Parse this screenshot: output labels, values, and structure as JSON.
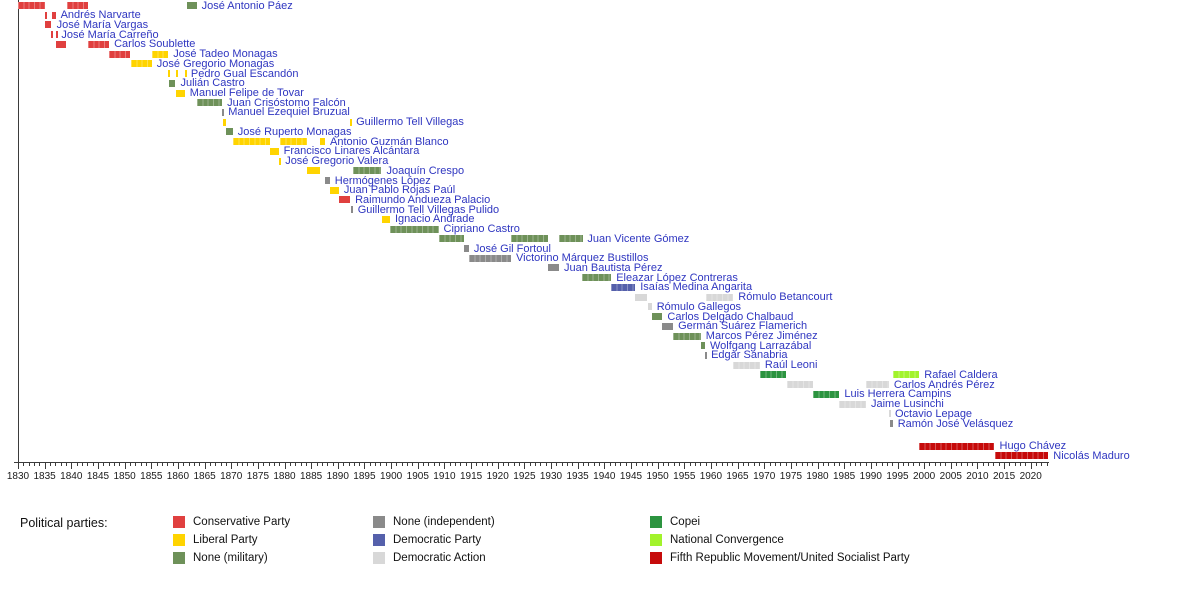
{
  "legend": {
    "heading": "Political parties:",
    "columns": [
      [
        {
          "label": "Conservative Party",
          "party": "conservative"
        },
        {
          "label": "Liberal Party",
          "party": "liberal"
        },
        {
          "label": "None (military)",
          "party": "none_military"
        }
      ],
      [
        {
          "label": "None (independent)",
          "party": "none_independent"
        },
        {
          "label": "Democratic Party",
          "party": "democratic_party"
        },
        {
          "label": "Democratic Action",
          "party": "democratic_action"
        }
      ],
      [
        {
          "label": "Copei",
          "party": "copei"
        },
        {
          "label": "National Convergence",
          "party": "national_convergence"
        },
        {
          "label": "Fifth Republic Movement/United Socialist Party",
          "party": "fifth_republic"
        }
      ]
    ]
  },
  "party_colors": {
    "conservative": "#e0403f",
    "liberal": "#ffd400",
    "none_military": "#6e9159",
    "none_independent": "#8a8a8a",
    "democratic_party": "#5560ab",
    "democratic_action": "#d8d8d8",
    "copei": "#2c9440",
    "national_convergence": "#a2f32b",
    "fifth_republic": "#c60b0b"
  },
  "chart_data": {
    "type": "timeline",
    "x_axis": {
      "min": 1830,
      "max": 2023.5,
      "minor_tick_step": 1,
      "label_step": 5,
      "labels": [
        "1830",
        "1835",
        "1840",
        "1845",
        "1850",
        "1855",
        "1860",
        "1865",
        "1870",
        "1875",
        "1880",
        "1885",
        "1890",
        "1895",
        "1900",
        "1905",
        "1910",
        "1915",
        "1920",
        "1925",
        "1930",
        "1935",
        "1940",
        "1945",
        "1950",
        "1955",
        "1960",
        "1965",
        "1970",
        "1975",
        "1980",
        "1985",
        "1990",
        "1995",
        "2000",
        "2005",
        "2010",
        "2015",
        "2020"
      ]
    },
    "presidents": [
      {
        "name": "José Antonio Páez",
        "terms": [
          {
            "start": 1830.0,
            "end": 1835.1,
            "party": "conservative"
          },
          {
            "start": 1839.1,
            "end": 1843.1,
            "party": "conservative"
          },
          {
            "start": 1861.7,
            "end": 1863.5,
            "party": "none_military"
          }
        ]
      },
      {
        "name": "Andrés Narvarte",
        "terms": [
          {
            "start": 1835.0,
            "end": 1835.15,
            "party": "conservative"
          },
          {
            "start": 1836.3,
            "end": 1837.05,
            "party": "conservative"
          }
        ]
      },
      {
        "name": "José María Vargas",
        "terms": [
          {
            "start": 1835.15,
            "end": 1836.3,
            "party": "conservative"
          }
        ]
      },
      {
        "name": "José María Carreño",
        "terms": [
          {
            "start": 1836.2,
            "end": 1836.35,
            "party": "conservative"
          },
          {
            "start": 1837.05,
            "end": 1837.2,
            "party": "conservative"
          }
        ]
      },
      {
        "name": "Carlos Soublette",
        "terms": [
          {
            "start": 1837.2,
            "end": 1839.1,
            "party": "conservative"
          },
          {
            "start": 1843.1,
            "end": 1847.1,
            "party": "conservative"
          }
        ]
      },
      {
        "name": "José Tadeo Monagas",
        "terms": [
          {
            "start": 1847.1,
            "end": 1851.1,
            "party": "conservative"
          },
          {
            "start": 1855.1,
            "end": 1858.2,
            "party": "liberal"
          }
        ]
      },
      {
        "name": "José Gregorio Monagas",
        "terms": [
          {
            "start": 1851.1,
            "end": 1855.1,
            "party": "liberal"
          }
        ]
      },
      {
        "name": "Pedro Gual Escandón",
        "terms": [
          {
            "start": 1858.2,
            "end": 1858.35,
            "party": "liberal"
          },
          {
            "start": 1859.55,
            "end": 1859.7,
            "party": "liberal"
          },
          {
            "start": 1861.3,
            "end": 1861.5,
            "party": "liberal"
          }
        ]
      },
      {
        "name": "Julián Castro",
        "terms": [
          {
            "start": 1858.35,
            "end": 1859.55,
            "party": "none_military"
          }
        ]
      },
      {
        "name": "Manuel Felipe de Tovar",
        "terms": [
          {
            "start": 1859.7,
            "end": 1861.3,
            "party": "liberal"
          }
        ]
      },
      {
        "name": "Juan Crisóstomo Falcón",
        "terms": [
          {
            "start": 1863.5,
            "end": 1868.3,
            "party": "none_military"
          }
        ]
      },
      {
        "name": "Manuel Ezequiel Bruzual",
        "terms": [
          {
            "start": 1868.3,
            "end": 1868.5,
            "party": "none_independent"
          }
        ]
      },
      {
        "name": "Guillermo Tell Villegas",
        "terms": [
          {
            "start": 1868.5,
            "end": 1869.1,
            "party": "liberal"
          },
          {
            "start": 1892.3,
            "end": 1892.5,
            "party": "liberal"
          }
        ]
      },
      {
        "name": "José Ruperto Monagas",
        "terms": [
          {
            "start": 1869.1,
            "end": 1870.3,
            "party": "none_military"
          }
        ]
      },
      {
        "name": "Antonio Guzmán Blanco",
        "terms": [
          {
            "start": 1870.3,
            "end": 1877.2,
            "party": "liberal"
          },
          {
            "start": 1879.2,
            "end": 1884.3,
            "party": "liberal"
          },
          {
            "start": 1886.7,
            "end": 1887.6,
            "party": "liberal"
          }
        ]
      },
      {
        "name": "Francisco Linares Alcántara",
        "terms": [
          {
            "start": 1877.2,
            "end": 1878.9,
            "party": "liberal"
          }
        ]
      },
      {
        "name": "José Gregorio Valera",
        "terms": [
          {
            "start": 1878.9,
            "end": 1879.2,
            "party": "liberal"
          }
        ]
      },
      {
        "name": "Joaquín Crespo",
        "terms": [
          {
            "start": 1884.3,
            "end": 1886.7,
            "party": "liberal"
          },
          {
            "start": 1892.8,
            "end": 1898.2,
            "party": "none_military"
          }
        ]
      },
      {
        "name": "Hermógenes López",
        "terms": [
          {
            "start": 1887.6,
            "end": 1888.5,
            "party": "none_independent"
          }
        ]
      },
      {
        "name": "Juan Pablo Rojas Paúl",
        "terms": [
          {
            "start": 1888.5,
            "end": 1890.2,
            "party": "liberal"
          }
        ]
      },
      {
        "name": "Raimundo Andueza Palacio",
        "terms": [
          {
            "start": 1890.2,
            "end": 1892.3,
            "party": "conservative"
          }
        ]
      },
      {
        "name": "Guillermo Tell Villegas Pulido",
        "terms": [
          {
            "start": 1892.55,
            "end": 1892.8,
            "party": "none_independent"
          }
        ]
      },
      {
        "name": "Ignacio Andrade",
        "terms": [
          {
            "start": 1898.2,
            "end": 1899.8,
            "party": "liberal"
          }
        ]
      },
      {
        "name": "Cipriano Castro",
        "terms": [
          {
            "start": 1899.8,
            "end": 1908.9,
            "party": "none_military"
          }
        ]
      },
      {
        "name": "Juan Vicente Gómez",
        "terms": [
          {
            "start": 1908.9,
            "end": 1913.6,
            "party": "none_military"
          },
          {
            "start": 1922.5,
            "end": 1929.4,
            "party": "none_military"
          },
          {
            "start": 1931.5,
            "end": 1935.9,
            "party": "none_military"
          }
        ]
      },
      {
        "name": "José Gil Fortoul",
        "terms": [
          {
            "start": 1913.6,
            "end": 1914.6,
            "party": "none_independent"
          }
        ]
      },
      {
        "name": "Victorino Márquez Bustillos",
        "terms": [
          {
            "start": 1914.6,
            "end": 1922.5,
            "party": "none_independent"
          }
        ]
      },
      {
        "name": "Juan Bautista Pérez",
        "terms": [
          {
            "start": 1929.4,
            "end": 1931.5,
            "party": "none_independent"
          }
        ]
      },
      {
        "name": "Eleazar López Contreras",
        "terms": [
          {
            "start": 1935.9,
            "end": 1941.3,
            "party": "none_military"
          }
        ]
      },
      {
        "name": "Isaías Medina Angarita",
        "terms": [
          {
            "start": 1941.3,
            "end": 1945.8,
            "party": "democratic_party"
          }
        ]
      },
      {
        "name": "Rómulo Betancourt",
        "terms": [
          {
            "start": 1945.8,
            "end": 1948.1,
            "party": "democratic_action"
          },
          {
            "start": 1959.1,
            "end": 1964.2,
            "party": "democratic_action"
          }
        ]
      },
      {
        "name": "Rómulo Gallegos",
        "terms": [
          {
            "start": 1948.1,
            "end": 1948.9,
            "party": "democratic_action"
          }
        ]
      },
      {
        "name": "Carlos Delgado Chalbaud",
        "terms": [
          {
            "start": 1948.9,
            "end": 1950.9,
            "party": "none_military"
          }
        ]
      },
      {
        "name": "Germán Suárez Flamerich",
        "terms": [
          {
            "start": 1950.9,
            "end": 1952.9,
            "party": "none_independent"
          }
        ]
      },
      {
        "name": "Marcos Pérez Jiménez",
        "terms": [
          {
            "start": 1952.9,
            "end": 1958.1,
            "party": "none_military"
          }
        ]
      },
      {
        "name": "Wolfgang Larrazábal",
        "terms": [
          {
            "start": 1958.1,
            "end": 1958.9,
            "party": "none_military"
          }
        ]
      },
      {
        "name": "Edgar Sanabria",
        "terms": [
          {
            "start": 1958.9,
            "end": 1959.1,
            "party": "none_independent"
          }
        ]
      },
      {
        "name": "Raúl Leoni",
        "terms": [
          {
            "start": 1964.2,
            "end": 1969.2,
            "party": "democratic_action"
          }
        ]
      },
      {
        "name": "Rafael Caldera",
        "terms": [
          {
            "start": 1969.2,
            "end": 1974.2,
            "party": "copei"
          },
          {
            "start": 1994.1,
            "end": 1999.1,
            "party": "national_convergence"
          }
        ]
      },
      {
        "name": "Carlos Andrés Pérez",
        "terms": [
          {
            "start": 1974.2,
            "end": 1979.2,
            "party": "democratic_action"
          },
          {
            "start": 1989.1,
            "end": 1993.4,
            "party": "democratic_action"
          }
        ]
      },
      {
        "name": "Luis Herrera Campins",
        "terms": [
          {
            "start": 1979.2,
            "end": 1984.1,
            "party": "copei"
          }
        ]
      },
      {
        "name": "Jaime Lusinchi",
        "terms": [
          {
            "start": 1984.1,
            "end": 1989.1,
            "party": "democratic_action"
          }
        ]
      },
      {
        "name": "Octavio Lepage",
        "terms": [
          {
            "start": 1993.4,
            "end": 1993.6,
            "party": "democratic_action"
          }
        ]
      },
      {
        "name": "Ramón José Velásquez",
        "terms": [
          {
            "start": 1993.6,
            "end": 1994.1,
            "party": "none_independent"
          }
        ]
      },
      {
        "name": "Hugo Chávez",
        "gap_before": true,
        "terms": [
          {
            "start": 1999.1,
            "end": 2013.2,
            "party": "fifth_republic"
          }
        ]
      },
      {
        "name": "Nicolás Maduro",
        "terms": [
          {
            "start": 2013.2,
            "end": 2023.3,
            "party": "fifth_republic"
          }
        ]
      }
    ]
  }
}
